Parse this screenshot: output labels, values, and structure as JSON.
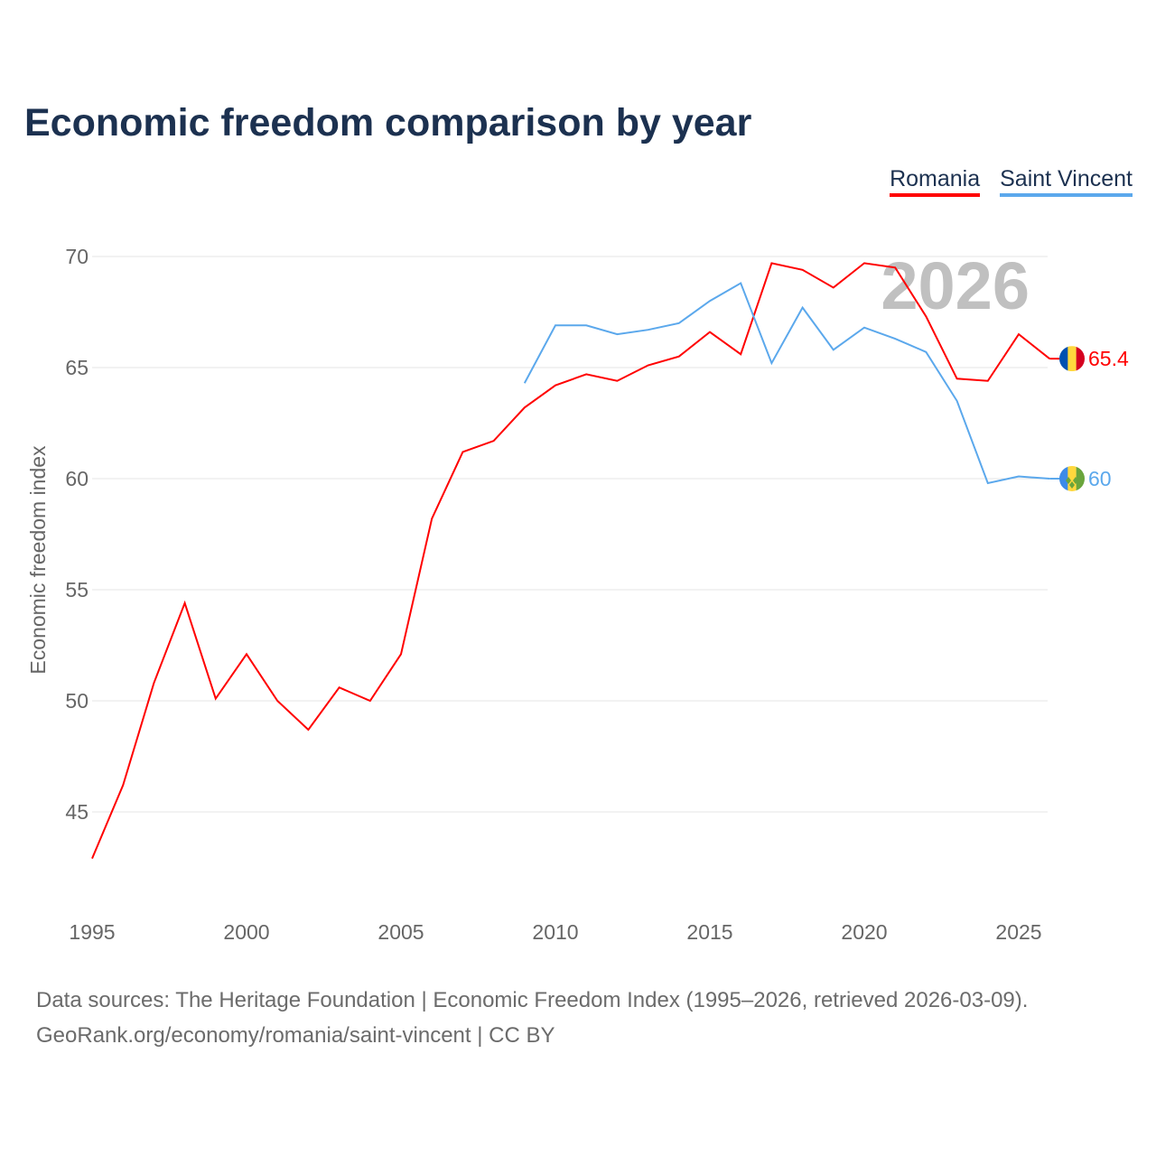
{
  "title": "Economic freedom comparison by year",
  "legend": [
    {
      "label": "Romania",
      "color": "#ff0000"
    },
    {
      "label": "Saint Vincent",
      "color": "#5ba8ec"
    }
  ],
  "sources": {
    "line1": "Data sources: The Heritage Foundation | Economic Freedom Index (1995–2026, retrieved 2026-03-09).",
    "line2": "GeoRank.org/economy/romania/saint-vincent | CC BY"
  },
  "chart_data": {
    "type": "line",
    "title": "Economic freedom comparison by year",
    "ylabel": "Economic freedom index",
    "xlabel": "",
    "year_watermark": "2026",
    "ylim": [
      41,
      71
    ],
    "xlim": [
      1995,
      2026
    ],
    "yticks": [
      45,
      50,
      55,
      60,
      65,
      70
    ],
    "xticks": [
      1995,
      2000,
      2005,
      2010,
      2015,
      2020,
      2025
    ],
    "grid": true,
    "legend_placement": "top-right",
    "series": [
      {
        "name": "Romania",
        "color": "#ff0000",
        "end_label": "65.4",
        "x": [
          1995,
          1996,
          1997,
          1998,
          1999,
          2000,
          2001,
          2002,
          2003,
          2004,
          2005,
          2006,
          2007,
          2008,
          2009,
          2010,
          2011,
          2012,
          2013,
          2014,
          2015,
          2016,
          2017,
          2018,
          2019,
          2020,
          2021,
          2022,
          2023,
          2024,
          2025,
          2026
        ],
        "values": [
          42.9,
          46.2,
          50.8,
          54.4,
          50.1,
          52.1,
          50.0,
          48.7,
          50.6,
          50.0,
          52.1,
          58.2,
          61.2,
          61.7,
          63.2,
          64.2,
          64.7,
          64.4,
          65.1,
          65.5,
          66.6,
          65.6,
          69.7,
          69.4,
          68.6,
          69.7,
          69.5,
          67.3,
          64.5,
          64.4,
          66.5,
          65.4
        ]
      },
      {
        "name": "Saint Vincent",
        "color": "#5ba8ec",
        "end_label": "60",
        "x": [
          2009,
          2010,
          2011,
          2012,
          2013,
          2014,
          2015,
          2016,
          2017,
          2018,
          2019,
          2020,
          2021,
          2022,
          2023,
          2024,
          2025,
          2026
        ],
        "values": [
          64.3,
          66.9,
          66.9,
          66.5,
          66.7,
          67.0,
          68.0,
          68.8,
          65.2,
          67.7,
          65.8,
          66.8,
          66.3,
          65.7,
          63.5,
          59.8,
          60.1,
          60.0
        ]
      }
    ]
  }
}
